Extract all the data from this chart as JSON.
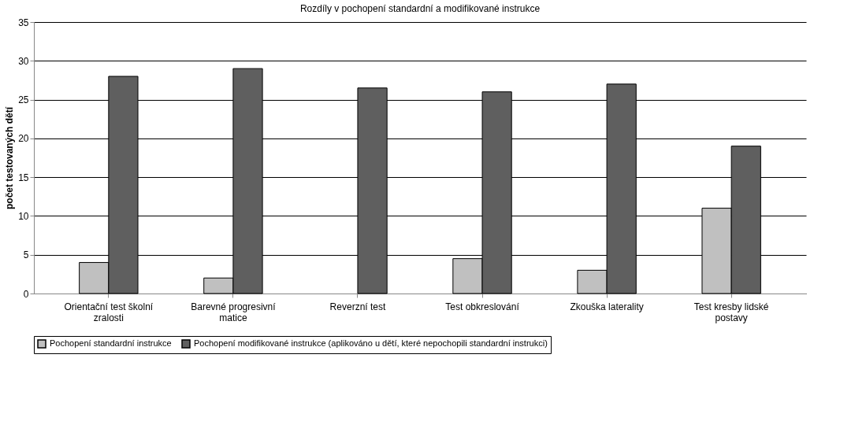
{
  "chart_data": {
    "type": "bar",
    "title": "Rozdíly v pochopení standardní a modifikované instrukce",
    "ylabel": "počet testovaných dětí",
    "categories": [
      "Orientační test školní zralosti",
      "Barevné progresivní matice",
      "Reverzní test",
      "Test obkreslování",
      "Zkouška laterality",
      "Test kresby lidské postavy"
    ],
    "series": [
      {
        "name": "Pochopení standardní instrukce",
        "color": "#c0c0c0",
        "values": [
          4,
          2,
          0,
          4.5,
          3,
          11
        ]
      },
      {
        "name": "Pochopení modifikované instrukce (aplikováno u dětí, které nepochopili standardní instrukci)",
        "color": "#5f5f5f",
        "values": [
          28,
          29,
          26.5,
          26,
          27,
          19
        ]
      }
    ],
    "ylim": [
      0,
      35
    ],
    "yticks": [
      0,
      5,
      10,
      15,
      20,
      25,
      30,
      35
    ],
    "grid": "y",
    "legend": "bottom"
  }
}
